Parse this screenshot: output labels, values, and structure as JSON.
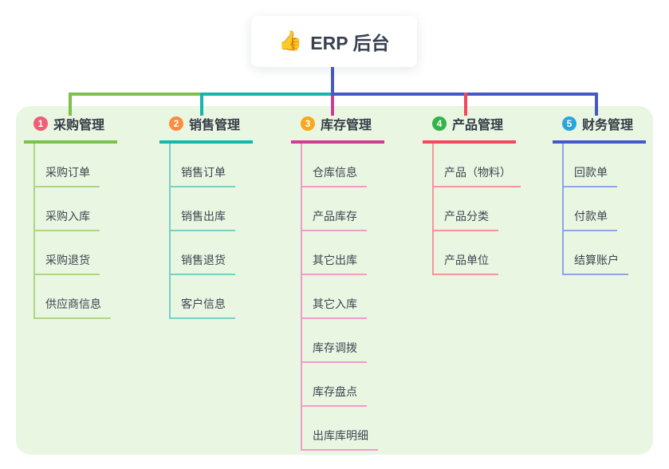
{
  "root": {
    "icon": "👍",
    "title": "ERP 后台"
  },
  "colors": {
    "panel_bg": "#e9f6e2",
    "root_connector": "#4a5ac4",
    "root_text": "#39414f"
  },
  "branches": [
    {
      "num": "1",
      "label": "采购管理",
      "color": "#7cc14a",
      "light": "#aed584",
      "badge": "#f25d76",
      "children": [
        "采购订单",
        "采购入库",
        "采购退货",
        "供应商信息"
      ]
    },
    {
      "num": "2",
      "label": "销售管理",
      "color": "#16b6ae",
      "light": "#76d0c8",
      "badge": "#fb8d40",
      "children": [
        "销售订单",
        "销售出库",
        "销售退货",
        "客户信息"
      ]
    },
    {
      "num": "3",
      "label": "库存管理",
      "color": "#cb3e93",
      "light": "#f19bc8",
      "badge": "#f9a81d",
      "children": [
        "仓库信息",
        "产品库存",
        "其它出库",
        "其它入库",
        "库存调拨",
        "库存盘点",
        "出库库明细"
      ]
    },
    {
      "num": "4",
      "label": "产品管理",
      "color": "#f5485c",
      "light": "#f8949b",
      "badge": "#33b44a",
      "children": [
        "产品（物料）",
        "产品分类",
        "产品单位"
      ]
    },
    {
      "num": "5",
      "label": "财务管理",
      "color": "#4459c5",
      "light": "#8ea6e8",
      "badge": "#29a5dc",
      "children": [
        "回款单",
        "付款单",
        "结算账户"
      ]
    }
  ]
}
